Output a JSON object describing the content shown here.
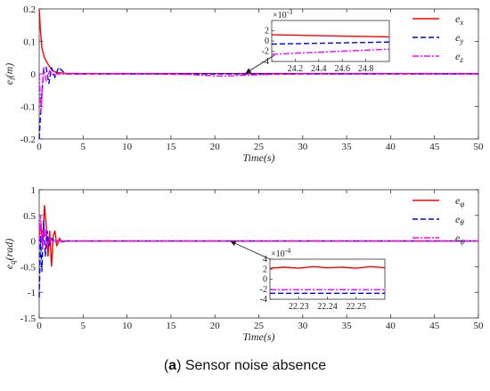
{
  "caption": {
    "tag": "a",
    "text": "Sensor noise absence"
  },
  "chart_data": [
    {
      "type": "line",
      "ylabel": "e_l(m)",
      "xlabel": "Time(s)",
      "xlim": [
        0,
        50
      ],
      "ylim": [
        -0.2,
        0.2
      ],
      "xticks": [
        "0",
        "5",
        "10",
        "15",
        "20",
        "25",
        "30",
        "35",
        "40",
        "45",
        "50"
      ],
      "yticks": [
        "0.2",
        "0.1",
        "0",
        "-0.1",
        "-0.2"
      ],
      "legend_position": "top-right",
      "series": [
        {
          "name": "e_x",
          "color": "#ff0000",
          "dash": "solid",
          "x": [
            0,
            0.1,
            0.3,
            0.6,
            1.0,
            1.5,
            2.0,
            3.0,
            5,
            10,
            20,
            30,
            40,
            50
          ],
          "y": [
            0.2,
            0.15,
            0.08,
            0.05,
            0.03,
            0.01,
            0.004,
            0.002,
            0.001,
            0.001,
            0.001,
            0.001,
            0.001,
            0.001
          ]
        },
        {
          "name": "e_y",
          "color": "#0000ff",
          "dash": "dashed",
          "x": [
            0,
            0.2,
            0.5,
            0.8,
            1.1,
            1.4,
            1.8,
            2.2,
            2.6,
            3.0,
            4,
            10,
            20,
            30,
            40,
            50
          ],
          "y": [
            -0.2,
            -0.1,
            0.01,
            0.02,
            -0.03,
            0.02,
            -0.01,
            0.02,
            0.01,
            0.0,
            0.0,
            0.0,
            0.0,
            0.0,
            0.0,
            0.0
          ]
        },
        {
          "name": "e_z",
          "color": "#ff00ff",
          "dash": "dashdot",
          "x": [
            0,
            0.2,
            0.5,
            0.8,
            1.2,
            1.6,
            2.0,
            3,
            5,
            12,
            17,
            20,
            21,
            23,
            26,
            30,
            40,
            50
          ],
          "y": [
            0.0,
            -0.12,
            0.02,
            -0.02,
            0.01,
            -0.005,
            0.0,
            0.0,
            0.0,
            0.0,
            -0.002,
            -0.006,
            -0.007,
            -0.004,
            -0.002,
            0.0,
            0.0,
            0.0
          ]
        }
      ],
      "inset": {
        "multiplier": "×10^-3",
        "xlim": [
          24.0,
          25.0
        ],
        "ylim": [
          -4,
          4
        ],
        "xticks": [
          "24.2",
          "24.4",
          "24.6",
          "24.8"
        ],
        "yticks": [
          "2",
          "0",
          "-2",
          "-4"
        ],
        "series": [
          {
            "name": "e_x",
            "x": [
              24.0,
              25.0
            ],
            "y": [
              1.2,
              0.8
            ]
          },
          {
            "name": "e_y",
            "x": [
              24.0,
              25.0
            ],
            "y": [
              -0.6,
              -0.2
            ]
          },
          {
            "name": "e_z",
            "x": [
              24.0,
              24.3,
              24.6,
              25.0
            ],
            "y": [
              -2.6,
              -2.3,
              -2.0,
              -1.6
            ]
          }
        ]
      }
    },
    {
      "type": "line",
      "ylabel": "e_q(rad)",
      "xlabel": "Time(s)",
      "xlim": [
        0,
        50
      ],
      "ylim": [
        -1.5,
        1.0
      ],
      "xticks": [
        "0",
        "5",
        "10",
        "15",
        "20",
        "25",
        "30",
        "35",
        "40",
        "45",
        "50"
      ],
      "yticks": [
        "1",
        "0.5",
        "0",
        "-0.5",
        "-1",
        "-1.5"
      ],
      "legend_position": "top-right",
      "series": [
        {
          "name": "e_φ",
          "color": "#ff0000",
          "dash": "solid",
          "x": [
            0,
            0.2,
            0.4,
            0.6,
            0.8,
            1.0,
            1.2,
            1.4,
            1.6,
            1.8,
            2.0,
            2.3,
            2.6,
            3.0,
            4,
            10,
            30,
            50
          ],
          "y": [
            0.0,
            0.35,
            -0.1,
            0.7,
            0.3,
            -0.3,
            0.2,
            -0.5,
            0.1,
            0.2,
            -0.1,
            0.05,
            -0.02,
            0.0,
            0.0,
            0.0,
            0.0,
            0.0
          ]
        },
        {
          "name": "e_θ",
          "color": "#0000ff",
          "dash": "dashed",
          "x": [
            0,
            0.15,
            0.3,
            0.5,
            0.7,
            0.9,
            1.1,
            1.4,
            1.8,
            2.2,
            3,
            10,
            30,
            50
          ],
          "y": [
            -1.1,
            0.1,
            -0.6,
            0.4,
            -0.3,
            0.2,
            -0.1,
            0.05,
            0.0,
            0.0,
            0.0,
            0.0,
            0.0,
            0.0
          ]
        },
        {
          "name": "e_ψ",
          "color": "#ff00ff",
          "dash": "dashdot",
          "x": [
            0,
            0.15,
            0.35,
            0.6,
            0.9,
            1.2,
            1.6,
            2.0,
            3,
            10,
            30,
            50
          ],
          "y": [
            0.0,
            0.5,
            -0.15,
            0.25,
            -0.1,
            0.05,
            -0.02,
            0.0,
            0.0,
            0.0,
            0.0,
            0.0
          ]
        }
      ],
      "inset": {
        "multiplier": "×10^-4",
        "xlim": [
          22.22,
          22.26
        ],
        "ylim": [
          -4,
          4
        ],
        "xticks": [
          "22.23",
          "22.24",
          "22.25"
        ],
        "yticks": [
          "4",
          "2",
          "0",
          "-2",
          "-4"
        ],
        "series": [
          {
            "name": "e_φ",
            "x": [
              22.22,
              22.225,
              22.23,
              22.235,
              22.24,
              22.245,
              22.25,
              22.255,
              22.26
            ],
            "y": [
              2.2,
              2.4,
              2.2,
              2.5,
              2.3,
              2.4,
              2.2,
              2.5,
              2.3
            ]
          },
          {
            "name": "e_θ",
            "x": [
              22.22,
              22.26
            ],
            "y": [
              -2.8,
              -2.8
            ]
          },
          {
            "name": "e_ψ",
            "x": [
              22.22,
              22.26
            ],
            "y": [
              -2.1,
              -2.1
            ]
          }
        ]
      }
    }
  ]
}
